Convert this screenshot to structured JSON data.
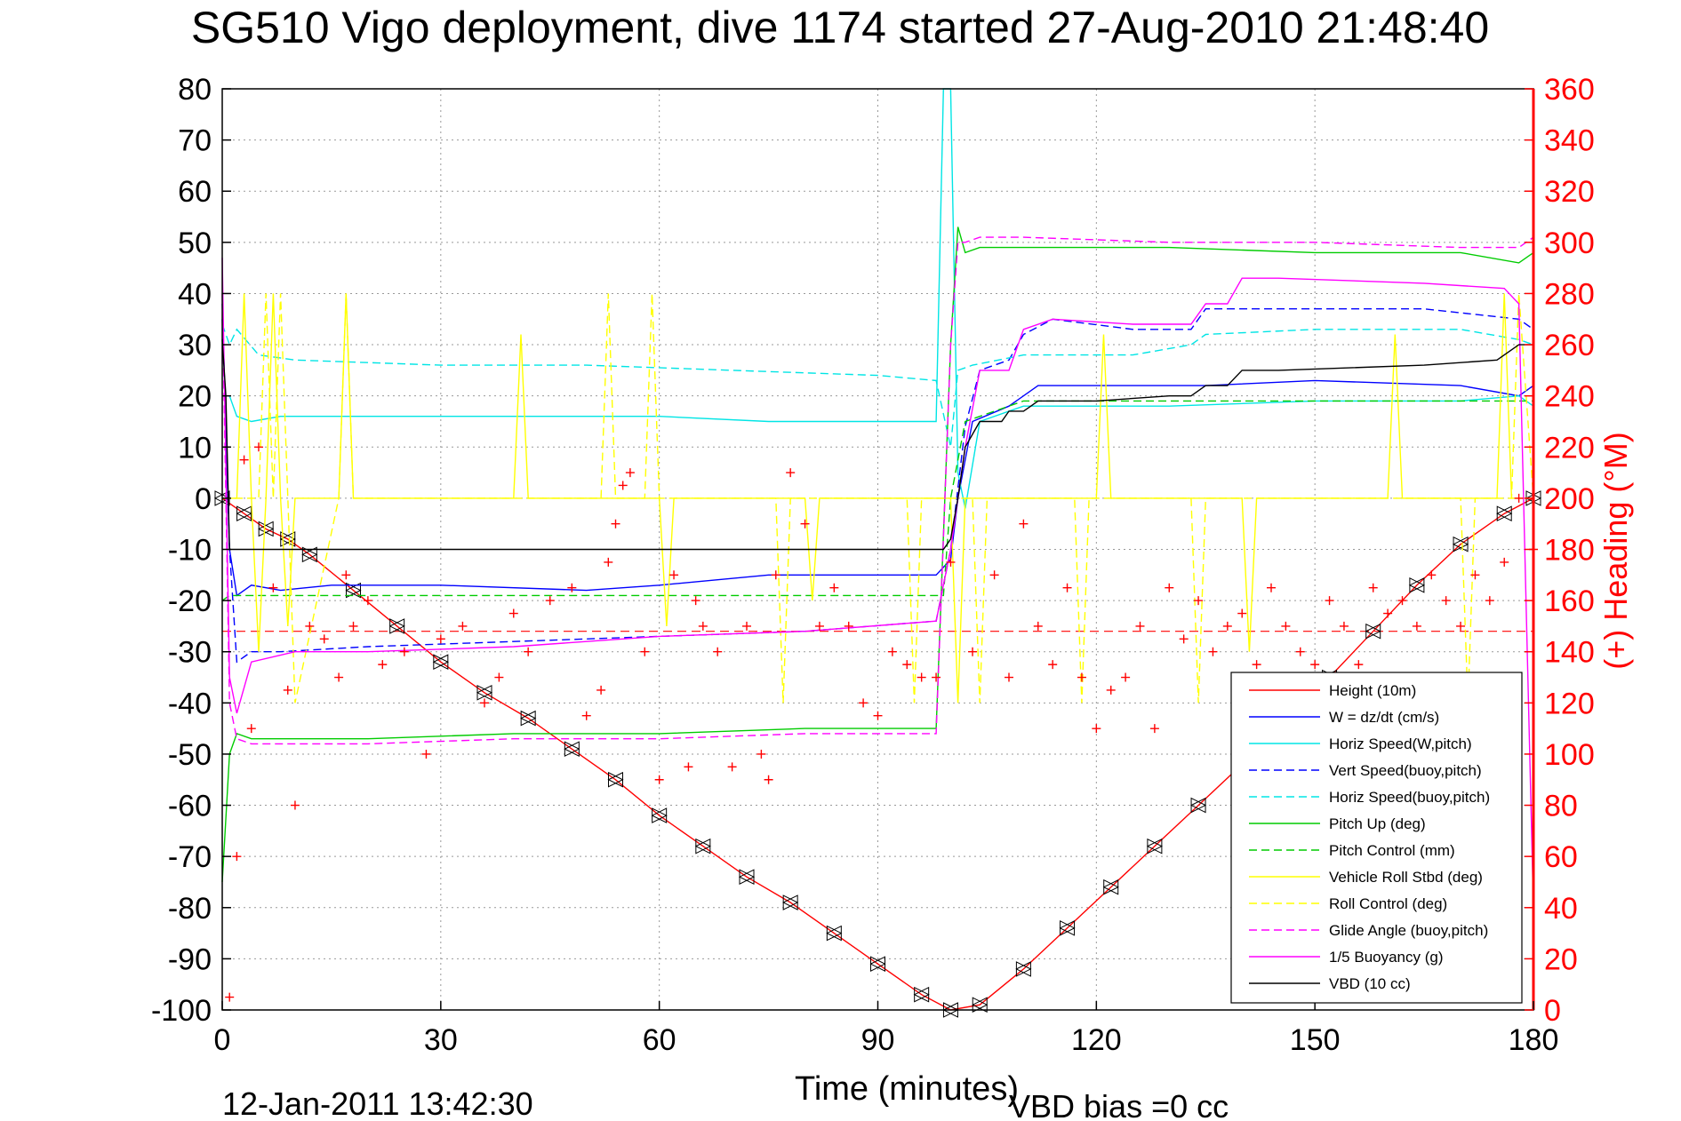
{
  "chart_data": {
    "type": "line",
    "title": "SG510 Vigo deployment, dive 1174 started 27-Aug-2010 21:48:40",
    "xlabel": "Time (minutes)",
    "ylabel": "",
    "ylabel_right": "(+) Heading (°M)",
    "xlim": [
      0,
      180
    ],
    "ylim": [
      -100,
      80
    ],
    "ylim_right": [
      0,
      360
    ],
    "x_ticks": [
      "0",
      "30",
      "60",
      "90",
      "120",
      "150",
      "180"
    ],
    "y_ticks": [
      "80",
      "70",
      "60",
      "50",
      "40",
      "30",
      "20",
      "10",
      "0",
      "-10",
      "-20",
      "-30",
      "-40",
      "-50",
      "-60",
      "-70",
      "-80",
      "-90",
      "-100"
    ],
    "y_ticks_right": [
      "360",
      "340",
      "320",
      "300",
      "280",
      "260",
      "240",
      "220",
      "200",
      "180",
      "160",
      "140",
      "120",
      "100",
      "80",
      "60",
      "40",
      "20",
      "0"
    ],
    "grid": true,
    "legend_position": "bottom-right",
    "footer_date": "12-Jan-2011 13:42:30",
    "footer_note": "VBD bias =0 cc",
    "series": [
      {
        "name": "Height (10m)",
        "color": "#ff0000",
        "style": "solid",
        "axis": "left",
        "x": [
          0,
          3,
          6,
          9,
          12,
          18,
          24,
          30,
          36,
          42,
          48,
          54,
          60,
          66,
          72,
          78,
          84,
          90,
          96,
          100,
          104,
          110,
          116,
          122,
          128,
          134,
          140,
          146,
          152,
          158,
          164,
          170,
          176,
          180
        ],
        "y": [
          0,
          -3,
          -6,
          -8,
          -11,
          -18,
          -25,
          -32,
          -38,
          -43,
          -49,
          -55,
          -62,
          -68,
          -74,
          -79,
          -85,
          -91,
          -97,
          -100,
          -99,
          -92,
          -84,
          -76,
          -68,
          -60,
          -52,
          -44,
          -35,
          -26,
          -17,
          -9,
          -3,
          0
        ]
      },
      {
        "name": "W = dz/dt (cm/s)",
        "color": "#0000ff",
        "style": "solid",
        "axis": "left",
        "x": [
          0,
          1,
          2,
          4,
          8,
          15,
          30,
          50,
          60,
          75,
          90,
          98,
          100,
          101,
          103,
          108,
          112,
          120,
          135,
          150,
          170,
          178,
          180
        ],
        "y": [
          38,
          -10,
          -19,
          -17,
          -18,
          -17,
          -17,
          -18,
          -17,
          -15,
          -15,
          -15,
          -12,
          0,
          15,
          18,
          22,
          22,
          22,
          23,
          22,
          20,
          22
        ]
      },
      {
        "name": "Horiz Speed(W,pitch)",
        "color": "#00e5e5",
        "style": "solid",
        "axis": "left",
        "x": [
          0,
          1,
          2,
          4,
          8,
          15,
          30,
          50,
          60,
          75,
          90,
          98,
          99,
          100,
          101,
          102,
          104,
          110,
          130,
          150,
          170,
          178,
          180
        ],
        "y": [
          20,
          20,
          16,
          15,
          16,
          16,
          16,
          16,
          16,
          15,
          15,
          15,
          80,
          80,
          5,
          -2,
          15,
          18,
          18,
          19,
          19,
          20,
          18
        ]
      },
      {
        "name": "Vert Speed(buoy,pitch)",
        "color": "#0000ff",
        "style": "dashed",
        "axis": "left",
        "x": [
          0,
          1,
          2,
          4,
          8,
          20,
          40,
          60,
          80,
          98,
          100,
          102,
          104,
          108,
          110,
          114,
          125,
          133,
          135,
          145,
          165,
          178,
          180
        ],
        "y": [
          35,
          -10,
          -32,
          -30,
          -30,
          -29,
          -28,
          -27,
          -26,
          -24,
          -10,
          14,
          25,
          27,
          32,
          35,
          33,
          33,
          37,
          37,
          37,
          35,
          33
        ]
      },
      {
        "name": "Horiz Speed(buoy,pitch)",
        "color": "#00e5e5",
        "style": "dashed",
        "axis": "left",
        "x": [
          0,
          1,
          2,
          5,
          10,
          30,
          50,
          70,
          90,
          98,
          100,
          101,
          103,
          110,
          125,
          133,
          135,
          150,
          170,
          178,
          180
        ],
        "y": [
          34,
          30,
          33,
          28,
          27,
          26,
          26,
          25,
          24,
          23,
          10,
          25,
          26,
          28,
          28,
          30,
          32,
          33,
          33,
          31,
          30
        ]
      },
      {
        "name": "Pitch Up (deg)",
        "color": "#00cc00",
        "style": "solid",
        "axis": "left",
        "x": [
          0,
          1,
          2,
          4,
          10,
          20,
          40,
          60,
          80,
          98,
          100,
          101,
          102,
          104,
          110,
          130,
          150,
          170,
          178,
          180
        ],
        "y": [
          -75,
          -50,
          -46,
          -47,
          -47,
          -47,
          -46,
          -46,
          -45,
          -45,
          30,
          53,
          48,
          49,
          49,
          49,
          48,
          48,
          46,
          48
        ]
      },
      {
        "name": "Pitch Control (mm)",
        "color": "#00cc00",
        "style": "dashed",
        "axis": "left",
        "x": [
          0,
          1,
          2,
          99,
          100,
          102,
          110,
          120,
          150,
          180
        ],
        "y": [
          -20,
          -19,
          -19,
          -19,
          0,
          15,
          19,
          19,
          19,
          19
        ]
      },
      {
        "name": "Vehicle Roll Stbd (deg)",
        "color": "#ffff00",
        "style": "solid",
        "axis": "left",
        "x": [
          0,
          2,
          3,
          4,
          5,
          6,
          7,
          8,
          9,
          10,
          16,
          17,
          18,
          19,
          40,
          41,
          42,
          43,
          60,
          61,
          62,
          63,
          80,
          81,
          82,
          83,
          100,
          101,
          102,
          103,
          120,
          121,
          122,
          123,
          140,
          141,
          142,
          143,
          160,
          161,
          162,
          163,
          175,
          176,
          177,
          180
        ],
        "y": [
          0,
          0,
          40,
          0,
          -30,
          0,
          40,
          0,
          -25,
          0,
          0,
          40,
          0,
          0,
          0,
          32,
          0,
          0,
          0,
          -25,
          0,
          0,
          0,
          -20,
          0,
          0,
          0,
          -40,
          0,
          0,
          0,
          32,
          0,
          0,
          0,
          -30,
          0,
          0,
          0,
          32,
          0,
          0,
          0,
          40,
          0,
          0
        ]
      },
      {
        "name": "Roll Control (deg)",
        "color": "#ffff00",
        "style": "dashed",
        "axis": "left",
        "x": [
          0,
          5,
          6,
          7,
          8,
          9,
          10,
          16,
          17,
          18,
          19,
          52,
          53,
          54,
          58,
          59,
          60,
          76,
          77,
          78,
          94,
          95,
          96,
          103,
          104,
          105,
          117,
          118,
          119,
          133,
          134,
          135,
          170,
          171,
          172,
          177,
          178,
          180
        ],
        "y": [
          0,
          0,
          40,
          0,
          40,
          0,
          -40,
          0,
          40,
          0,
          0,
          0,
          40,
          0,
          0,
          40,
          0,
          0,
          -40,
          0,
          0,
          -40,
          0,
          0,
          -40,
          0,
          0,
          -40,
          0,
          0,
          -40,
          0,
          0,
          -40,
          0,
          0,
          40,
          0
        ]
      },
      {
        "name": "Glide Angle (buoy,pitch)",
        "color": "#ff00ff",
        "style": "dashed",
        "axis": "left",
        "x": [
          0,
          1,
          2,
          4,
          10,
          20,
          40,
          60,
          80,
          98,
          100,
          101,
          102,
          104,
          110,
          130,
          150,
          170,
          178,
          180
        ],
        "y": [
          40,
          -40,
          -47,
          -48,
          -48,
          -48,
          -47,
          -47,
          -46,
          -46,
          30,
          50,
          50,
          51,
          51,
          50,
          50,
          49,
          49,
          51
        ]
      },
      {
        "name": "1/5 Buoyancy (g)",
        "color": "#ff00ff",
        "style": "solid",
        "axis": "left",
        "x": [
          0,
          1,
          2,
          4,
          10,
          20,
          40,
          60,
          80,
          98,
          100,
          102,
          104,
          108,
          110,
          114,
          125,
          133,
          135,
          138,
          140,
          145,
          165,
          176,
          178,
          180
        ],
        "y": [
          47,
          -35,
          -42,
          -32,
          -30,
          -30,
          -29,
          -27,
          -26,
          -24,
          -10,
          10,
          25,
          25,
          33,
          35,
          34,
          34,
          38,
          38,
          43,
          43,
          42,
          41,
          38,
          -80
        ]
      },
      {
        "name": "VBD (10 cc)",
        "color": "#000000",
        "style": "solid",
        "axis": "left",
        "x": [
          0,
          0.5,
          1,
          2,
          5,
          10,
          30,
          60,
          90,
          99,
          100,
          101,
          102,
          104,
          107,
          108,
          110,
          112,
          115,
          120,
          130,
          133,
          135,
          138,
          140,
          145,
          165,
          175,
          178,
          180
        ],
        "y": [
          31,
          20,
          -10,
          -10,
          -10,
          -10,
          -10,
          -10,
          -10,
          -10,
          -8,
          0,
          10,
          15,
          15,
          17,
          17,
          19,
          19,
          19,
          20,
          20,
          22,
          22,
          25,
          25,
          26,
          27,
          30,
          30
        ]
      },
      {
        "name": "Heading",
        "color": "#ff0000",
        "style": "markers",
        "marker": "+",
        "axis": "right",
        "x": [
          1,
          2,
          3,
          4,
          5,
          7,
          9,
          10,
          12,
          14,
          16,
          17,
          18,
          20,
          22,
          25,
          28,
          30,
          33,
          36,
          38,
          40,
          42,
          45,
          48,
          50,
          52,
          53,
          54,
          55,
          56,
          58,
          60,
          62,
          64,
          65,
          66,
          68,
          70,
          72,
          74,
          75,
          76,
          78,
          80,
          82,
          84,
          86,
          88,
          90,
          92,
          94,
          96,
          98,
          100,
          103,
          106,
          108,
          110,
          112,
          114,
          116,
          118,
          120,
          122,
          124,
          126,
          128,
          130,
          132,
          134,
          136,
          138,
          140,
          142,
          144,
          146,
          148,
          150,
          152,
          154,
          156,
          158,
          160,
          162,
          164,
          166,
          168,
          170,
          172,
          174,
          176,
          178,
          180
        ],
        "y": [
          5,
          60,
          215,
          110,
          220,
          165,
          125,
          80,
          150,
          145,
          130,
          170,
          150,
          160,
          135,
          140,
          100,
          145,
          150,
          120,
          130,
          155,
          140,
          160,
          165,
          115,
          125,
          175,
          190,
          205,
          210,
          140,
          90,
          170,
          95,
          160,
          150,
          140,
          95,
          150,
          100,
          90,
          170,
          210,
          190,
          150,
          165,
          150,
          120,
          115,
          140,
          135,
          130,
          130,
          175,
          140,
          170,
          130,
          190,
          150,
          135,
          165,
          130,
          110,
          125,
          130,
          150,
          110,
          165,
          145,
          160,
          140,
          150,
          155,
          135,
          165,
          150,
          140,
          135,
          160,
          150,
          135,
          165,
          155,
          160,
          150,
          170,
          160,
          150,
          170,
          160,
          175,
          200,
          180
        ]
      }
    ]
  }
}
